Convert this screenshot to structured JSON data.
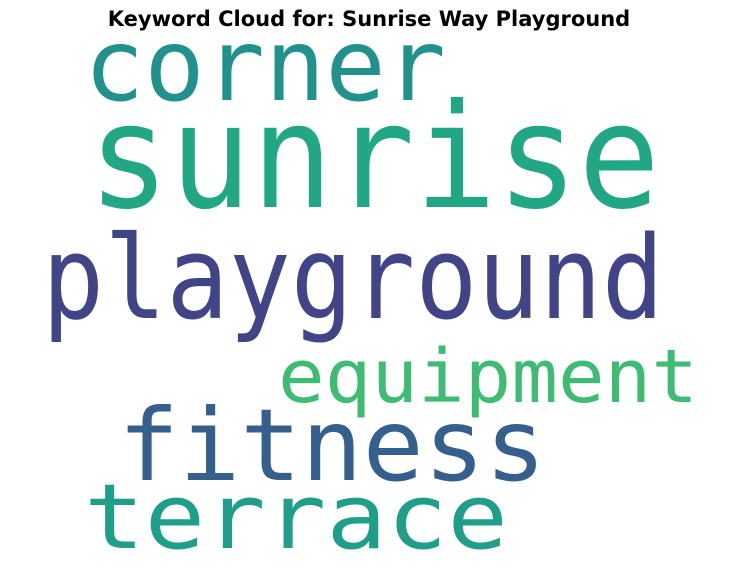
{
  "chart_data": {
    "type": "wordcloud",
    "title": "Keyword Cloud for: Sunrise Way Playground",
    "words": [
      {
        "text": "sunrise",
        "color": "#22a784"
      },
      {
        "text": "playground",
        "color": "#414487"
      },
      {
        "text": "corner",
        "color": "#21918c"
      },
      {
        "text": "equipment",
        "color": "#3fbc73"
      },
      {
        "text": "fitness",
        "color": "#355f8d"
      },
      {
        "text": "terrace",
        "color": "#1f9e89"
      }
    ]
  }
}
